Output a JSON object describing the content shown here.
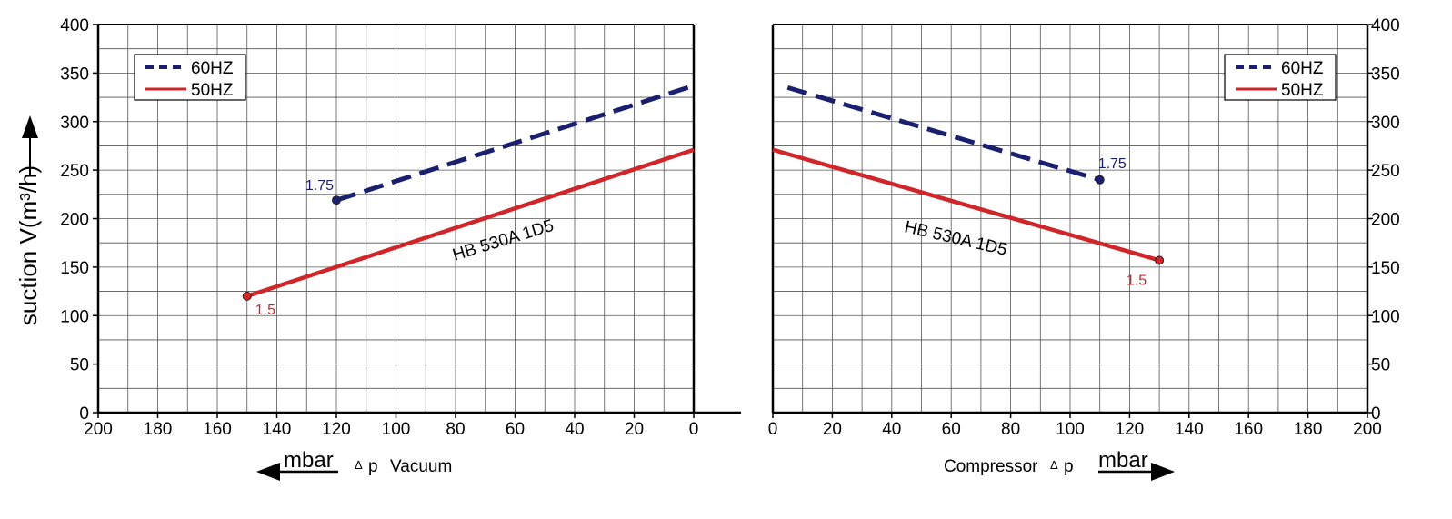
{
  "y_axis_label": "suction V(m³/h)",
  "chart_data": [
    {
      "type": "line",
      "panel": "vacuum",
      "xlim": [
        200,
        0
      ],
      "ylim": [
        0,
        400
      ],
      "x_ticks": [
        200,
        180,
        160,
        140,
        120,
        100,
        80,
        60,
        40,
        20,
        0
      ],
      "y_ticks": [
        0,
        50,
        100,
        150,
        200,
        250,
        300,
        350,
        400
      ],
      "xlabel": "Vacuum",
      "xlabel_delta": "p",
      "unit": "mbar",
      "model_label": "HB 530A 1D5",
      "legend_position": "top-left",
      "grid": true,
      "series": [
        {
          "name": "60HZ",
          "color": "#1a1f6e",
          "dashed": true,
          "x": [
            120,
            0
          ],
          "y": [
            219,
            337
          ],
          "end_label": "1.75",
          "end_label_color": "#1a1f6e"
        },
        {
          "name": "50HZ",
          "color": "#d0262a",
          "dashed": false,
          "x": [
            150,
            0
          ],
          "y": [
            120,
            271
          ],
          "end_label": "1.5",
          "end_label_color": "#d0262a"
        }
      ]
    },
    {
      "type": "line",
      "panel": "compressor",
      "xlim": [
        0,
        200
      ],
      "ylim": [
        0,
        400
      ],
      "x_ticks": [
        0,
        20,
        40,
        60,
        80,
        100,
        120,
        140,
        160,
        180,
        200
      ],
      "y_ticks": [
        0,
        50,
        100,
        150,
        200,
        250,
        300,
        350,
        400
      ],
      "xlabel": "Compressor",
      "xlabel_delta": "p",
      "unit": "mbar",
      "model_label": "HB 530A 1D5",
      "legend_position": "top-right",
      "grid": true,
      "series": [
        {
          "name": "60HZ",
          "color": "#1a1f6e",
          "dashed": true,
          "x": [
            5,
            110
          ],
          "y": [
            335,
            240
          ],
          "end_label": "1.75",
          "end_label_color": "#1a1f6e"
        },
        {
          "name": "50HZ",
          "color": "#d0262a",
          "dashed": false,
          "x": [
            0,
            130
          ],
          "y": [
            271,
            157
          ],
          "end_label": "1.5",
          "end_label_color": "#d0262a"
        }
      ]
    }
  ]
}
